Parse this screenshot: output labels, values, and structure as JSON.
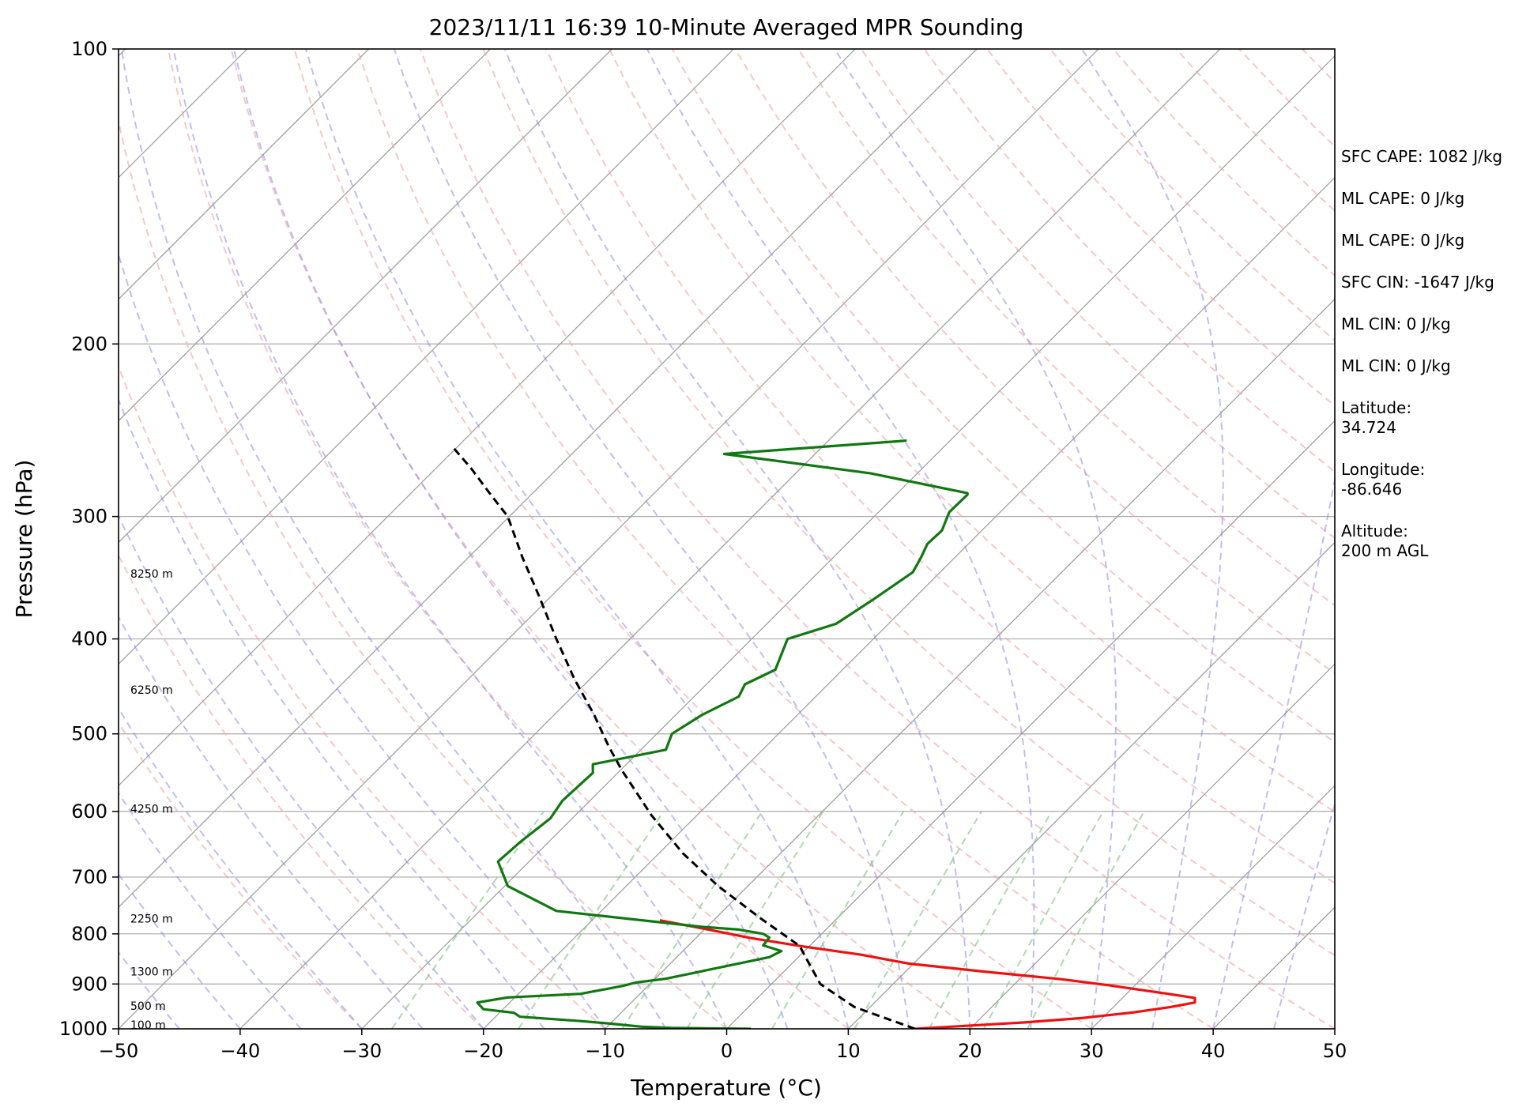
{
  "chart_data": {
    "type": "line",
    "subtype": "skew-t log-p sounding",
    "title": "2023/11/11 16:39 10-Minute Averaged MPR Sounding",
    "xlabel": "Temperature (°C)",
    "ylabel": "Pressure (hPa)",
    "xlim": [
      -50,
      50
    ],
    "ylim": [
      1000,
      100
    ],
    "y_scale": "log",
    "x_ticks": [
      "−50",
      "−40",
      "−30",
      "−20",
      "−10",
      "0",
      "10",
      "20",
      "30",
      "40",
      "50"
    ],
    "y_ticks": [
      100,
      200,
      300,
      400,
      500,
      600,
      700,
      800,
      900,
      1000
    ],
    "height_labels": [
      {
        "p": 343,
        "label": "8250 m"
      },
      {
        "p": 451,
        "label": "6250 m"
      },
      {
        "p": 596,
        "label": "4250 m"
      },
      {
        "p": 772,
        "label": "2250 m"
      },
      {
        "p": 874,
        "label": "1300 m"
      },
      {
        "p": 948,
        "label": "500 m"
      },
      {
        "p": 991,
        "label": "100 m"
      }
    ],
    "series": [
      {
        "kind": "temperature",
        "color": "#ee1111",
        "points": [
          [
            15.5,
            1000
          ],
          [
            19.7,
            993
          ],
          [
            24.5,
            985
          ],
          [
            29.2,
            975
          ],
          [
            33.5,
            962
          ],
          [
            36.5,
            950
          ],
          [
            38.5,
            940
          ],
          [
            38.5,
            930
          ],
          [
            36,
            920
          ],
          [
            31.5,
            903
          ],
          [
            27.5,
            890
          ],
          [
            21.5,
            875
          ],
          [
            15,
            858
          ],
          [
            11,
            840
          ],
          [
            6,
            823
          ],
          [
            2,
            808
          ],
          [
            -1.5,
            792
          ],
          [
            -5.5,
            775
          ]
        ]
      },
      {
        "kind": "dewpoint",
        "color": "#117711",
        "points": [
          [
            2,
            1000
          ],
          [
            -4.5,
            998
          ],
          [
            -7,
            995
          ],
          [
            -9.5,
            988
          ],
          [
            -12,
            982
          ],
          [
            -17,
            972
          ],
          [
            -17.5,
            963
          ],
          [
            -20,
            955
          ],
          [
            -20.5,
            940
          ],
          [
            -18,
            929
          ],
          [
            -12,
            921
          ],
          [
            -8.5,
            904
          ],
          [
            -7.5,
            897
          ],
          [
            -5,
            889
          ],
          [
            3.5,
            845
          ],
          [
            4.5,
            833
          ],
          [
            3,
            822
          ],
          [
            3.5,
            807
          ],
          [
            3,
            800
          ],
          [
            1,
            792
          ],
          [
            -2,
            787
          ],
          [
            -14,
            758
          ],
          [
            -18,
            715
          ],
          [
            -18.8,
            675
          ],
          [
            -17,
            645
          ],
          [
            -14.5,
            610
          ],
          [
            -13.5,
            585
          ],
          [
            -11,
            548
          ],
          [
            -11,
            537
          ],
          [
            -5,
            519
          ],
          [
            -4.5,
            500
          ],
          [
            -2,
            478
          ],
          [
            1,
            458
          ],
          [
            1.5,
            445
          ],
          [
            4,
            430
          ],
          [
            5,
            400
          ],
          [
            9,
            386
          ],
          [
            12,
            365
          ],
          [
            15.3,
            342
          ],
          [
            16,
            330
          ],
          [
            16.5,
            320
          ],
          [
            17.7,
            310
          ],
          [
            18.3,
            297
          ],
          [
            19.8,
            285
          ],
          [
            19.8,
            284
          ],
          [
            11.8,
            271
          ],
          [
            -0.2,
            259
          ],
          [
            14.8,
            251
          ]
        ]
      },
      {
        "kind": "parcel",
        "color": "#000000",
        "points": [
          [
            15.5,
            1000
          ],
          [
            10.5,
            950
          ],
          [
            7.7,
            900
          ],
          [
            6.6,
            850
          ],
          [
            6,
            823
          ],
          [
            2.7,
            770
          ],
          [
            -0.7,
            715
          ],
          [
            -3.6,
            662
          ],
          [
            -6.2,
            605
          ],
          [
            -8.6,
            545
          ],
          [
            -9.7,
            515
          ],
          [
            -10.9,
            478
          ],
          [
            -12.5,
            440
          ],
          [
            -14,
            400
          ],
          [
            -15.5,
            360
          ],
          [
            -16.8,
            330
          ],
          [
            -18,
            300
          ],
          [
            -19.4,
            285
          ],
          [
            -21,
            268
          ],
          [
            -22.5,
            255
          ]
        ]
      }
    ]
  },
  "stats": [
    {
      "text": "SFC CAPE: 1082 J/kg"
    },
    {
      "text": "ML CAPE: 0 J/kg"
    },
    {
      "text": "ML CAPE: 0 J/kg"
    },
    {
      "text": "SFC CIN: -1647 J/kg"
    },
    {
      "text": "ML CIN: 0 J/kg"
    },
    {
      "text": "ML CIN: 0 J/kg"
    },
    {
      "label": "Latitude:",
      "value": "34.724"
    },
    {
      "label": "Longitude:",
      "value": "-86.646"
    },
    {
      "label": "Altitude:",
      "value": "200 m AGL"
    }
  ],
  "colors": {
    "dry_adiabat": "#f4a0a0",
    "moist_adiabat": "#8888ee",
    "mixing_ratio": "#88cc88",
    "isotherm": "#999999",
    "isobar": "#aaaaaa"
  }
}
